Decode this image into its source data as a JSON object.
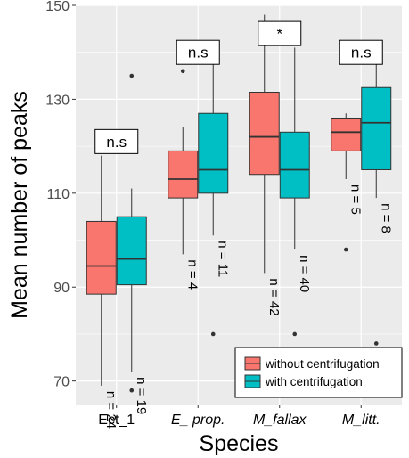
{
  "chart_data": {
    "type": "boxplot",
    "xlabel": "Species",
    "ylabel": "Mean number of peaks",
    "categories": [
      "Ect_1",
      "E_ prop.",
      "M_fallax",
      "M_litt."
    ],
    "category_italic": [
      false,
      true,
      true,
      true
    ],
    "ylim": [
      65,
      150
    ],
    "yticks": [
      70,
      90,
      110,
      130,
      150
    ],
    "grid": true,
    "legend_position": "bottom-right",
    "series": [
      {
        "name": "without centrifugation",
        "color": "#F8766D",
        "boxes": [
          {
            "min": 69,
            "q1": 88.5,
            "median": 94.5,
            "q3": 104,
            "max": 118,
            "outliers": [],
            "n_label": "n = 24"
          },
          {
            "min": 97,
            "q1": 109,
            "median": 113,
            "q3": 119,
            "max": 124,
            "outliers": [
              136
            ],
            "n_label": "n = 4"
          },
          {
            "min": 93,
            "q1": 114,
            "median": 122,
            "q3": 131.5,
            "max": 148,
            "outliers": [],
            "n_label": "n = 42"
          },
          {
            "min": 113,
            "q1": 119,
            "median": 123,
            "q3": 126,
            "max": 127,
            "outliers": [
              98
            ],
            "n_label": "n = 5"
          }
        ]
      },
      {
        "name": "with centrifugation",
        "color": "#00BFC4",
        "boxes": [
          {
            "min": 72,
            "q1": 90.5,
            "median": 96,
            "q3": 105,
            "max": 111,
            "outliers": [
              135,
              68
            ],
            "n_label": "n = 19"
          },
          {
            "min": 101,
            "q1": 110,
            "median": 115,
            "q3": 127,
            "max": 138,
            "outliers": [
              80
            ],
            "n_label": "n = 11"
          },
          {
            "min": 98,
            "q1": 109,
            "median": 115,
            "q3": 123,
            "max": 141,
            "outliers": [
              80
            ],
            "n_label": "n = 40"
          },
          {
            "min": 109,
            "q1": 115,
            "median": 125,
            "q3": 132.5,
            "max": 138,
            "outliers": [
              78
            ],
            "n_label": "n = 8"
          }
        ]
      }
    ],
    "significance": [
      {
        "category": "Ect_1",
        "label": "n.s",
        "y": 121
      },
      {
        "category": "E_ prop.",
        "label": "n.s",
        "y": 140
      },
      {
        "category": "M_fallax",
        "label": "*",
        "y": 144
      },
      {
        "category": "M_litt.",
        "label": "n.s",
        "y": 140
      }
    ]
  }
}
